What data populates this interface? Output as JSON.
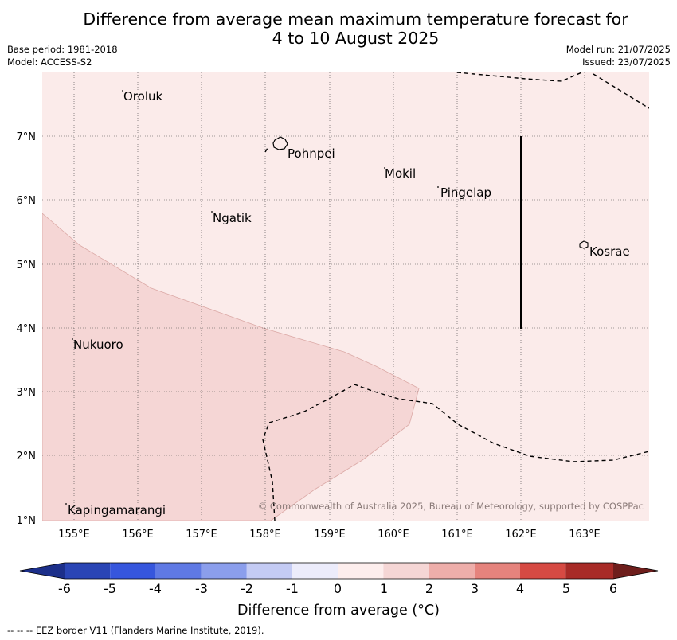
{
  "title_line1": "Difference from average mean maximum temperature forecast for",
  "title_line2": "4 to 10 August 2025",
  "meta_left": [
    "Base period: 1981-2018",
    "Model: ACCESS-S2"
  ],
  "meta_right": [
    "Model run: 21/07/2025",
    "Issued: 23/07/2025"
  ],
  "map": {
    "lat_ticks": [
      "7°N",
      "6°N",
      "5°N",
      "4°N",
      "3°N",
      "2°N",
      "1°N"
    ],
    "lon_ticks": [
      "155°E",
      "156°E",
      "157°E",
      "158°E",
      "159°E",
      "160°E",
      "161°E",
      "162°E",
      "163°E"
    ],
    "places": [
      "Oroluk",
      "Pohnpei",
      "Mokil",
      "Pingelap",
      "Ngatik",
      "Kosrae",
      "Nukuoro",
      "Kapingamarangi"
    ],
    "copyright": "© Commonwealth of Australia 2025, Bureau of Meteorology, supported by COSPPac",
    "fill_categories": [
      {
        "range": "0 to 1",
        "color": "#fbebea"
      },
      {
        "range": "1 to 2",
        "color": "#f5d6d5"
      }
    ]
  },
  "colorbar": {
    "labels": [
      "-6",
      "-5",
      "-4",
      "-3",
      "-2",
      "-1",
      "0",
      "1",
      "2",
      "3",
      "4",
      "5",
      "6"
    ],
    "colors": [
      "#1c2f8a",
      "#2a45b5",
      "#3656dd",
      "#5f79e4",
      "#8b9eec",
      "#c4cbf4",
      "#ececfb",
      "#fdeeed",
      "#f5d6d5",
      "#eeaeaa",
      "#e5837d",
      "#d64a43",
      "#a82b27",
      "#6e1e1c"
    ],
    "title": "Difference from average (°C)"
  },
  "footnote": "--  --  -- EEZ border V11 (Flanders Marine Institute, 2019)."
}
